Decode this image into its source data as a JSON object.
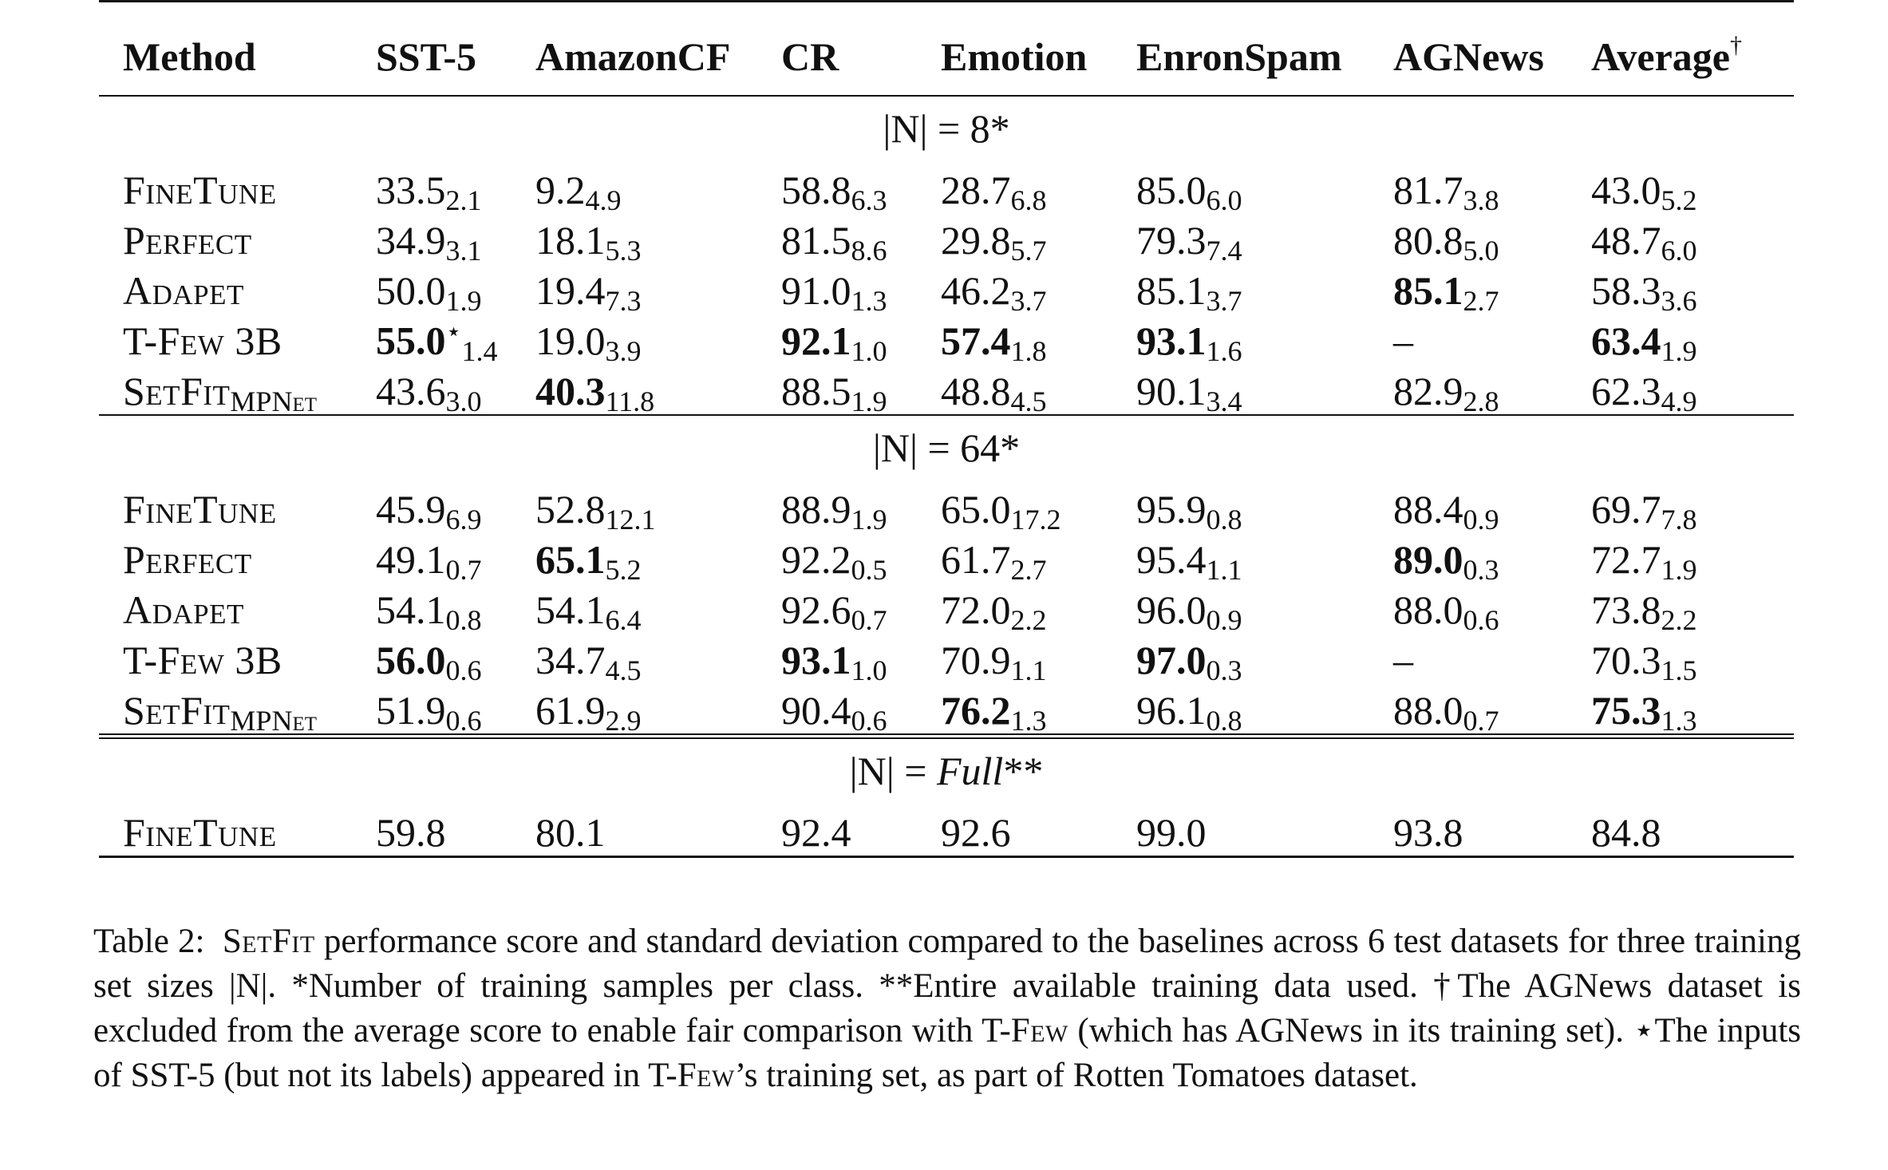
{
  "table": {
    "columns": [
      "Method",
      "SST-5",
      "AmazonCF",
      "CR",
      "Emotion",
      "EnronSpam",
      "AGNews",
      "Average"
    ],
    "average_mark": "†",
    "sections": [
      {
        "label": "|N| = 8*",
        "rows": [
          {
            "method": "FineTune",
            "method_sub": "",
            "cells": [
              {
                "v": "33.5",
                "sd": "2.1",
                "bold": false,
                "mark": ""
              },
              {
                "v": "9.2",
                "sd": "4.9",
                "bold": false,
                "mark": ""
              },
              {
                "v": "58.8",
                "sd": "6.3",
                "bold": false,
                "mark": ""
              },
              {
                "v": "28.7",
                "sd": "6.8",
                "bold": false,
                "mark": ""
              },
              {
                "v": "85.0",
                "sd": "6.0",
                "bold": false,
                "mark": ""
              },
              {
                "v": "81.7",
                "sd": "3.8",
                "bold": false,
                "mark": ""
              },
              {
                "v": "43.0",
                "sd": "5.2",
                "bold": false,
                "mark": ""
              }
            ]
          },
          {
            "method": "Perfect",
            "method_sub": "",
            "cells": [
              {
                "v": "34.9",
                "sd": "3.1",
                "bold": false,
                "mark": ""
              },
              {
                "v": "18.1",
                "sd": "5.3",
                "bold": false,
                "mark": ""
              },
              {
                "v": "81.5",
                "sd": "8.6",
                "bold": false,
                "mark": ""
              },
              {
                "v": "29.8",
                "sd": "5.7",
                "bold": false,
                "mark": ""
              },
              {
                "v": "79.3",
                "sd": "7.4",
                "bold": false,
                "mark": ""
              },
              {
                "v": "80.8",
                "sd": "5.0",
                "bold": false,
                "mark": ""
              },
              {
                "v": "48.7",
                "sd": "6.0",
                "bold": false,
                "mark": ""
              }
            ]
          },
          {
            "method": "Adapet",
            "method_sub": "",
            "cells": [
              {
                "v": "50.0",
                "sd": "1.9",
                "bold": false,
                "mark": ""
              },
              {
                "v": "19.4",
                "sd": "7.3",
                "bold": false,
                "mark": ""
              },
              {
                "v": "91.0",
                "sd": "1.3",
                "bold": false,
                "mark": ""
              },
              {
                "v": "46.2",
                "sd": "3.7",
                "bold": false,
                "mark": ""
              },
              {
                "v": "85.1",
                "sd": "3.7",
                "bold": false,
                "mark": ""
              },
              {
                "v": "85.1",
                "sd": "2.7",
                "bold": true,
                "mark": ""
              },
              {
                "v": "58.3",
                "sd": "3.6",
                "bold": false,
                "mark": ""
              }
            ]
          },
          {
            "method": "T-Few 3B",
            "method_sub": "",
            "cells": [
              {
                "v": "55.0",
                "sd": "1.4",
                "bold": true,
                "mark": "⋆"
              },
              {
                "v": "19.0",
                "sd": "3.9",
                "bold": false,
                "mark": ""
              },
              {
                "v": "92.1",
                "sd": "1.0",
                "bold": true,
                "mark": ""
              },
              {
                "v": "57.4",
                "sd": "1.8",
                "bold": true,
                "mark": ""
              },
              {
                "v": "93.1",
                "sd": "1.6",
                "bold": true,
                "mark": ""
              },
              {
                "v": "–",
                "sd": "",
                "bold": false,
                "mark": ""
              },
              {
                "v": "63.4",
                "sd": "1.9",
                "bold": true,
                "mark": ""
              }
            ]
          },
          {
            "method": "SetFit",
            "method_sub": "MPNet",
            "cells": [
              {
                "v": "43.6",
                "sd": "3.0",
                "bold": false,
                "mark": ""
              },
              {
                "v": "40.3",
                "sd": "11.8",
                "bold": true,
                "mark": ""
              },
              {
                "v": "88.5",
                "sd": "1.9",
                "bold": false,
                "mark": ""
              },
              {
                "v": "48.8",
                "sd": "4.5",
                "bold": false,
                "mark": ""
              },
              {
                "v": "90.1",
                "sd": "3.4",
                "bold": false,
                "mark": ""
              },
              {
                "v": "82.9",
                "sd": "2.8",
                "bold": false,
                "mark": ""
              },
              {
                "v": "62.3",
                "sd": "4.9",
                "bold": false,
                "mark": ""
              }
            ]
          }
        ]
      },
      {
        "label": "|N| = 64*",
        "rows": [
          {
            "method": "FineTune",
            "method_sub": "",
            "cells": [
              {
                "v": "45.9",
                "sd": "6.9",
                "bold": false,
                "mark": ""
              },
              {
                "v": "52.8",
                "sd": "12.1",
                "bold": false,
                "mark": ""
              },
              {
                "v": "88.9",
                "sd": "1.9",
                "bold": false,
                "mark": ""
              },
              {
                "v": "65.0",
                "sd": "17.2",
                "bold": false,
                "mark": ""
              },
              {
                "v": "95.9",
                "sd": "0.8",
                "bold": false,
                "mark": ""
              },
              {
                "v": "88.4",
                "sd": "0.9",
                "bold": false,
                "mark": ""
              },
              {
                "v": "69.7",
                "sd": "7.8",
                "bold": false,
                "mark": ""
              }
            ]
          },
          {
            "method": "Perfect",
            "method_sub": "",
            "cells": [
              {
                "v": "49.1",
                "sd": "0.7",
                "bold": false,
                "mark": ""
              },
              {
                "v": "65.1",
                "sd": "5.2",
                "bold": true,
                "mark": ""
              },
              {
                "v": "92.2",
                "sd": "0.5",
                "bold": false,
                "mark": ""
              },
              {
                "v": "61.7",
                "sd": "2.7",
                "bold": false,
                "mark": ""
              },
              {
                "v": "95.4",
                "sd": "1.1",
                "bold": false,
                "mark": ""
              },
              {
                "v": "89.0",
                "sd": "0.3",
                "bold": true,
                "mark": ""
              },
              {
                "v": "72.7",
                "sd": "1.9",
                "bold": false,
                "mark": ""
              }
            ]
          },
          {
            "method": "Adapet",
            "method_sub": "",
            "cells": [
              {
                "v": "54.1",
                "sd": "0.8",
                "bold": false,
                "mark": ""
              },
              {
                "v": "54.1",
                "sd": "6.4",
                "bold": false,
                "mark": ""
              },
              {
                "v": "92.6",
                "sd": "0.7",
                "bold": false,
                "mark": ""
              },
              {
                "v": "72.0",
                "sd": "2.2",
                "bold": false,
                "mark": ""
              },
              {
                "v": "96.0",
                "sd": "0.9",
                "bold": false,
                "mark": ""
              },
              {
                "v": "88.0",
                "sd": "0.6",
                "bold": false,
                "mark": ""
              },
              {
                "v": "73.8",
                "sd": "2.2",
                "bold": false,
                "mark": ""
              }
            ]
          },
          {
            "method": "T-Few 3B",
            "method_sub": "",
            "cells": [
              {
                "v": "56.0",
                "sd": "0.6",
                "bold": true,
                "mark": ""
              },
              {
                "v": "34.7",
                "sd": "4.5",
                "bold": false,
                "mark": ""
              },
              {
                "v": "93.1",
                "sd": "1.0",
                "bold": true,
                "mark": ""
              },
              {
                "v": "70.9",
                "sd": "1.1",
                "bold": false,
                "mark": ""
              },
              {
                "v": "97.0",
                "sd": "0.3",
                "bold": true,
                "mark": ""
              },
              {
                "v": "–",
                "sd": "",
                "bold": false,
                "mark": ""
              },
              {
                "v": "70.3",
                "sd": "1.5",
                "bold": false,
                "mark": ""
              }
            ]
          },
          {
            "method": "SetFit",
            "method_sub": "MPNet",
            "cells": [
              {
                "v": "51.9",
                "sd": "0.6",
                "bold": false,
                "mark": ""
              },
              {
                "v": "61.9",
                "sd": "2.9",
                "bold": false,
                "mark": ""
              },
              {
                "v": "90.4",
                "sd": "0.6",
                "bold": false,
                "mark": ""
              },
              {
                "v": "76.2",
                "sd": "1.3",
                "bold": true,
                "mark": ""
              },
              {
                "v": "96.1",
                "sd": "0.8",
                "bold": false,
                "mark": ""
              },
              {
                "v": "88.0",
                "sd": "0.7",
                "bold": false,
                "mark": ""
              },
              {
                "v": "75.3",
                "sd": "1.3",
                "bold": true,
                "mark": ""
              }
            ]
          }
        ]
      },
      {
        "label_prefix": "|N| = ",
        "label_italic": "Full",
        "label_suffix": "**",
        "rows": [
          {
            "method": "FineTune",
            "method_sub": "",
            "cells": [
              {
                "v": "59.8",
                "sd": "",
                "bold": false,
                "mark": ""
              },
              {
                "v": "80.1",
                "sd": "",
                "bold": false,
                "mark": ""
              },
              {
                "v": "92.4",
                "sd": "",
                "bold": false,
                "mark": ""
              },
              {
                "v": "92.6",
                "sd": "",
                "bold": false,
                "mark": ""
              },
              {
                "v": "99.0",
                "sd": "",
                "bold": false,
                "mark": ""
              },
              {
                "v": "93.8",
                "sd": "",
                "bold": false,
                "mark": ""
              },
              {
                "v": "84.8",
                "sd": "",
                "bold": false,
                "mark": ""
              }
            ]
          }
        ]
      }
    ]
  },
  "caption": {
    "label": "Table 2:",
    "setfit": "SetFit",
    "text1": " performance score and standard deviation compared to the baselines across 6 test datasets for three training set sizes |N|. *Number of training samples per class. **Entire available training data used. †The AGNews dataset is excluded from the average score to enable fair comparison with T-",
    "tfew1": "Few",
    "text2": " (which has AGNews in its training set). ⋆The inputs of SST-5 (but not its labels) appeared in T-",
    "tfew2": "Few",
    "text3": "’s training set, as part of Rotten Tomatoes dataset."
  }
}
